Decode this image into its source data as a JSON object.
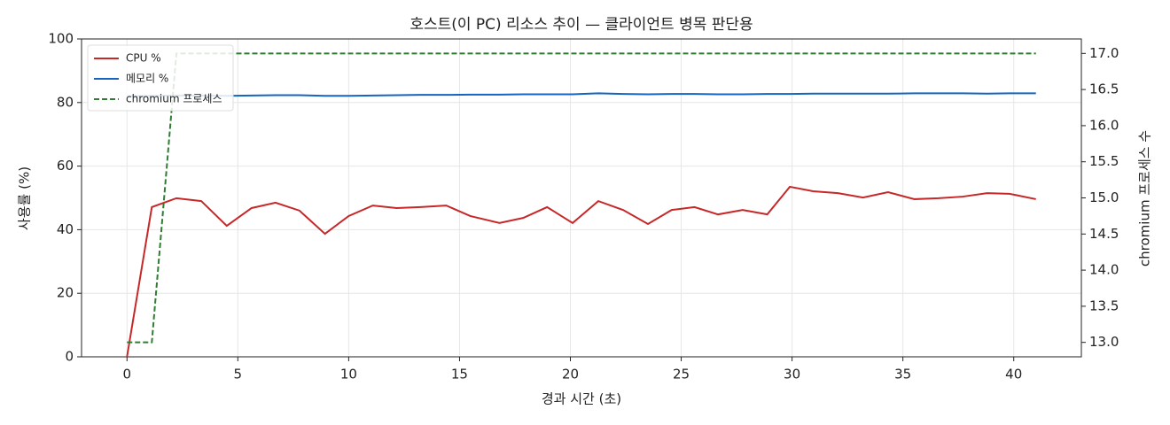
{
  "chart_data": {
    "type": "line",
    "title": "호스트(이 PC) 리소스 추이 — 클라이언트 병목 판단용",
    "x_label": "경과 시간 (초)",
    "y_label": "사용률 (%)",
    "y2_label": "chromium 프로세스 수",
    "x": [
      0,
      1.12,
      2.23,
      3.35,
      4.5,
      5.62,
      6.7,
      7.78,
      8.93,
      10.0,
      11.09,
      12.16,
      13.24,
      14.4,
      15.48,
      16.8,
      17.87,
      18.95,
      20.1,
      21.26,
      22.38,
      23.5,
      24.57,
      25.6,
      26.66,
      27.77,
      28.88,
      29.9,
      30.95,
      32.07,
      33.2,
      34.33,
      35.52,
      36.6,
      37.7,
      38.8,
      39.8,
      41.0
    ],
    "series": [
      {
        "name": "CPU %",
        "color": "#c62828",
        "axis": "y",
        "dashed": false,
        "values": [
          0,
          47.1,
          49.9,
          49.0,
          41.2,
          46.8,
          48.5,
          46.0,
          38.7,
          44.3,
          47.6,
          46.8,
          47.1,
          47.6,
          44.3,
          42.1,
          43.7,
          47.1,
          42.1,
          49.0,
          46.2,
          41.8,
          46.2,
          47.1,
          44.8,
          46.2,
          44.8,
          53.5,
          52.1,
          51.5,
          50.1,
          51.8,
          49.6,
          49.9,
          50.4,
          51.5,
          51.3,
          49.6
        ]
      },
      {
        "name": "메모리 %",
        "color": "#1565c0",
        "axis": "y",
        "dashed": false,
        "values": [
          82.0,
          82.1,
          82.2,
          82.2,
          82.1,
          82.2,
          82.3,
          82.3,
          82.1,
          82.1,
          82.2,
          82.3,
          82.4,
          82.4,
          82.5,
          82.5,
          82.6,
          82.6,
          82.6,
          82.9,
          82.7,
          82.6,
          82.7,
          82.7,
          82.6,
          82.6,
          82.7,
          82.7,
          82.8,
          82.8,
          82.8,
          82.8,
          82.9,
          82.9,
          82.9,
          82.8,
          82.9,
          82.9
        ]
      },
      {
        "name": "chromium 프로세스",
        "color": "#2e7d32",
        "axis": "y2",
        "dashed": true,
        "values": [
          13,
          13,
          17,
          17,
          17,
          17,
          17,
          17,
          17,
          17,
          17,
          17,
          17,
          17,
          17,
          17,
          17,
          17,
          17,
          17,
          17,
          17,
          17,
          17,
          17,
          17,
          17,
          17,
          17,
          17,
          17,
          17,
          17,
          17,
          17,
          17,
          17,
          17
        ]
      }
    ],
    "xlim": [
      -2.05,
      43.05
    ],
    "xticks": [
      0,
      5,
      10,
      15,
      20,
      25,
      30,
      35,
      40
    ],
    "ylim": [
      0,
      100
    ],
    "yticks": [
      0,
      20,
      40,
      60,
      80,
      100
    ],
    "y2lim": [
      12.8,
      17.2
    ],
    "y2ticks": [
      {
        "value": 13,
        "label": "13.0"
      },
      {
        "value": 13.5,
        "label": "13.5"
      },
      {
        "value": 14,
        "label": "14.0"
      },
      {
        "value": 14.5,
        "label": "14.5"
      },
      {
        "value": 15,
        "label": "15.0"
      },
      {
        "value": 15.5,
        "label": "15.5"
      },
      {
        "value": 16,
        "label": "16.0"
      },
      {
        "value": 16.5,
        "label": "16.5"
      },
      {
        "value": 17,
        "label": "17.0"
      }
    ],
    "grid": true,
    "legend": "upper-left"
  }
}
